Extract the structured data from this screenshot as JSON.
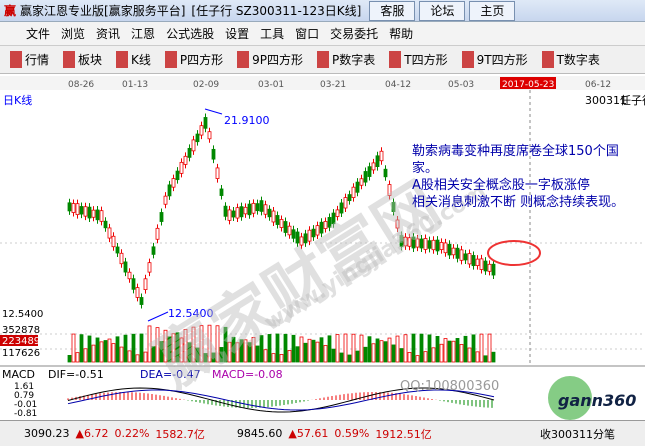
{
  "title_bar": {
    "app": "赢家江恩专业版[赢家服务平台]",
    "window": "[任子行  SZ300311-123日K线]",
    "links": [
      "客服",
      "论坛",
      "主页"
    ]
  },
  "menu": [
    "文件",
    "浏览",
    "资讯",
    "江恩",
    "公式选股",
    "设置",
    "工具",
    "窗口",
    "交易委托",
    "帮助"
  ],
  "toolbar": [
    "行情",
    "板块",
    "K线",
    "P四方形",
    "9P四方形",
    "P数字表",
    "T四方形",
    "9T四方形",
    "T数字表"
  ],
  "chart": {
    "label": "日K线",
    "dates": [
      "08-26",
      "01-13",
      "02-09",
      "03-01",
      "03-21",
      "04-12",
      "05-03",
      "2017-05-23",
      "06-12"
    ],
    "code": "300311",
    "name": "任子行",
    "high_label": "21.9100",
    "low_label": "12.5400",
    "left_price": "12.5400",
    "volume_labels": [
      "352878",
      "223489",
      "117626"
    ],
    "annotation": [
      "勒索病毒变种再度席卷全球150个国家。",
      "A股相关安全概念股一字板涨停",
      "相关消息刺激不断 则概念持续表现。"
    ]
  },
  "macd": {
    "label": "MACD",
    "dif": "DIF=-0.51",
    "dea": "DEA=-0.47",
    "macd": "MACD=-0.08",
    "axis": [
      "1.61",
      "0.79",
      "-0.01",
      "-0.81"
    ]
  },
  "watermark": {
    "site": "赢家财富网",
    "url": "www.yingjia360.com",
    "qq": "QQ:100800360",
    "logo": "gann360"
  },
  "status": {
    "index1": [
      "3090.23",
      "▲6.72",
      "0.22%",
      "1582.7亿"
    ],
    "index2": [
      "9845.60",
      "▲57.61",
      "0.59%",
      "1912.51亿"
    ],
    "right": "收300311分笔"
  }
}
